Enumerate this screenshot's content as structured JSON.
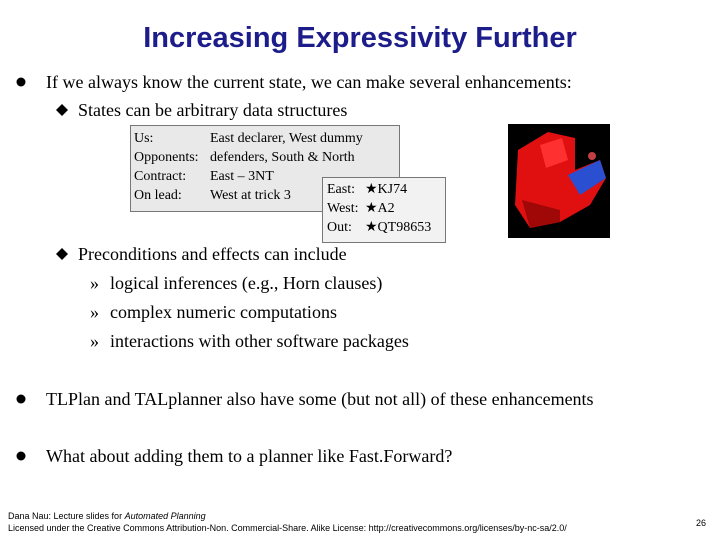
{
  "title": "Increasing Expressivity Further",
  "bullets": [
    {
      "text": "If we always know the current state, we can make several enhancements:",
      "items": [
        {
          "text": "States can be arbitrary data structures"
        },
        {
          "text": "Preconditions and effects can include",
          "items": [
            {
              "marker": "»",
              "text": "logical inferences (e.g., Horn clauses)"
            },
            {
              "marker": "»",
              "text": "complex numeric computations"
            },
            {
              "marker": "»",
              "text": "interactions with other software packages"
            }
          ]
        }
      ]
    },
    {
      "text": "TLPlan and TALplanner also have some (but not all) of these enhancements"
    },
    {
      "text": "What about adding them to a planner like Fast.Forward?"
    }
  ],
  "bridge_box": {
    "rows": [
      [
        "Us:",
        "East declarer, West dummy"
      ],
      [
        "Opponents:",
        "defenders, South & North"
      ],
      [
        "Contract:",
        "East – 3NT"
      ],
      [
        "On lead:",
        "West at trick 3"
      ]
    ]
  },
  "hands_box": {
    "rows": [
      [
        "East:",
        "★KJ74"
      ],
      [
        "West:",
        "★A2"
      ],
      [
        "Out:",
        "★QT98653"
      ]
    ]
  },
  "footer": {
    "line1": "Dana Nau: Lecture slides for",
    "line1_italic": "Automated Planning",
    "line2": "Licensed under the Creative Commons Attribution-Non. Commercial-Share. Alike License: http://creativecommons.org/licenses/by-nc-sa/2.0/",
    "page": "26"
  }
}
